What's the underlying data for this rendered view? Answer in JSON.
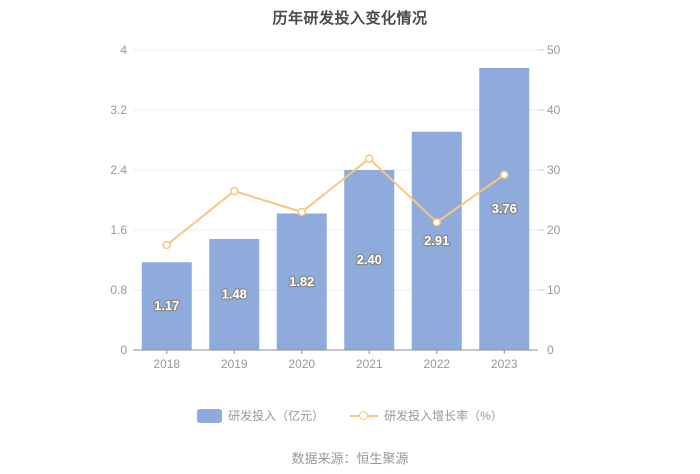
{
  "title": "历年研发投入变化情况",
  "source": "数据来源：恒生聚源",
  "colors": {
    "bar": "#8EABDB",
    "line": "#F6C87E",
    "grid": "#E7ECF6",
    "axis_line": "#8F8F8F",
    "right_tick": "#CCCCCC",
    "tick_label": "#999999",
    "bar_label_fill": "#FFFFFF",
    "bar_label_stroke": "#8B8B8B",
    "title_color": "#4A4A4A",
    "legend_text": "#999999",
    "source_text": "#999999"
  },
  "legend": {
    "items": [
      {
        "label": "研发投入（亿元）",
        "marker": "bar-swatch"
      },
      {
        "label": "研发投入增长率（%）",
        "marker": "line-ring"
      }
    ]
  },
  "chart_data": {
    "type": "bar",
    "title": "历年研发投入变化情况",
    "categories": [
      "2018",
      "2019",
      "2020",
      "2021",
      "2022",
      "2023"
    ],
    "series": [
      {
        "name": "研发投入（亿元）",
        "type": "bar",
        "y_axis": "left",
        "values": [
          1.17,
          1.48,
          1.82,
          2.4,
          2.91,
          3.76
        ],
        "data_labels": [
          "1.17",
          "1.48",
          "1.82",
          "2.40",
          "2.91",
          "3.76"
        ]
      },
      {
        "name": "研发投入增长率（%）",
        "type": "line",
        "y_axis": "right",
        "values": [
          17.5,
          26.5,
          23.0,
          31.9,
          21.3,
          29.2
        ]
      }
    ],
    "left_axis": {
      "min": 0,
      "max": 4,
      "tick_labels": [
        "0",
        "0.8",
        "1.6",
        "2.4",
        "3.2",
        "4"
      ]
    },
    "right_axis": {
      "min": 0,
      "max": 50,
      "tick_labels": [
        "0",
        "10",
        "20",
        "30",
        "40",
        "50"
      ]
    },
    "grid": true,
    "legend_position": "bottom",
    "xlabel": "",
    "ylabel_left": "研发投入（亿元）",
    "ylabel_right": "研发投入增长率（%）"
  }
}
